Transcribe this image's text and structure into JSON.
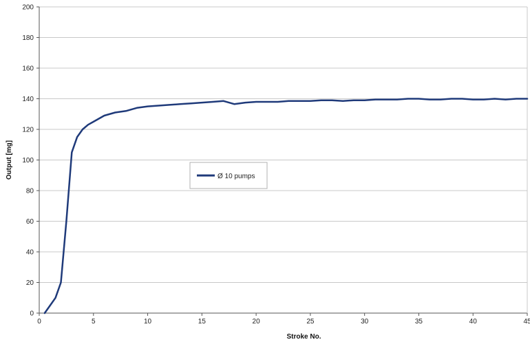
{
  "chart_data": {
    "type": "line",
    "title": "",
    "xlabel": "Stroke No.",
    "ylabel": "Output [mg]",
    "xlim": [
      0,
      45
    ],
    "ylim": [
      0,
      200
    ],
    "x_ticks": [
      0,
      5,
      10,
      15,
      20,
      25,
      30,
      35,
      40,
      45
    ],
    "y_ticks": [
      0,
      20,
      40,
      60,
      80,
      100,
      120,
      140,
      160,
      180,
      200
    ],
    "grid": "horizontal",
    "legend_position": "center-left",
    "line_color": "#1f3a7a",
    "series": [
      {
        "name": "Ø 10 pumps",
        "x": [
          0.5,
          1.0,
          1.5,
          2.0,
          2.5,
          3.0,
          3.5,
          4.0,
          4.5,
          5.0,
          6.0,
          7.0,
          8.0,
          9.0,
          10.0,
          11.0,
          12.0,
          13.0,
          14.0,
          15.0,
          16.0,
          17.0,
          18.0,
          19.0,
          20.0,
          21.0,
          22.0,
          23.0,
          24.0,
          25.0,
          26.0,
          27.0,
          28.0,
          29.0,
          30.0,
          31.0,
          32.0,
          33.0,
          34.0,
          35.0,
          36.0,
          37.0,
          38.0,
          39.0,
          40.0,
          41.0,
          42.0,
          43.0,
          44.0,
          45.0
        ],
        "values": [
          0,
          5,
          10,
          20,
          60,
          105,
          115,
          120,
          123,
          125,
          129,
          131,
          132,
          134,
          135,
          135.5,
          136,
          136.5,
          137,
          137.5,
          138,
          138.5,
          136.5,
          137.5,
          138,
          138,
          138,
          138.5,
          138.5,
          138.5,
          139,
          139,
          138.5,
          139,
          139,
          139.5,
          139.5,
          139.5,
          140,
          140,
          139.5,
          139.5,
          140,
          140,
          139.5,
          139.5,
          140,
          139.5,
          140,
          140
        ]
      }
    ]
  }
}
